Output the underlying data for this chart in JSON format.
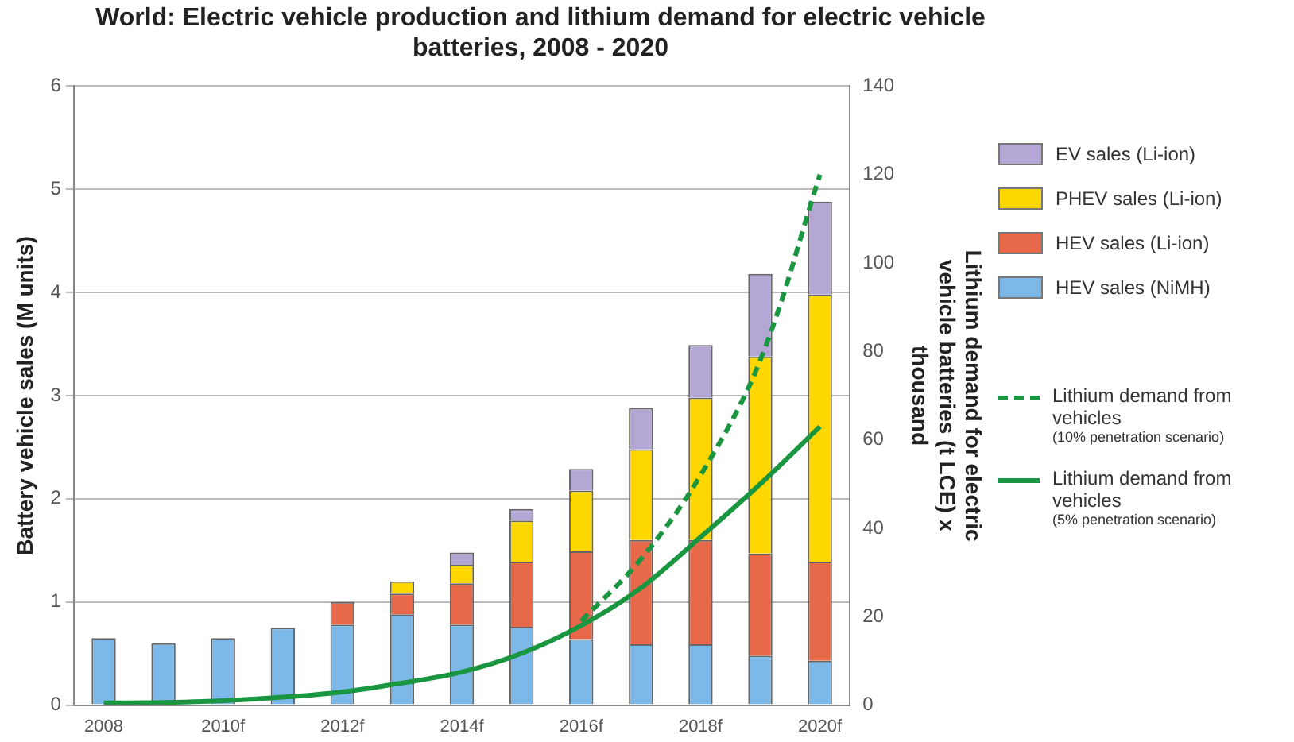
{
  "chart_data": {
    "type": "bar",
    "title": "World:  Electric vehicle production and lithium demand for electric vehicle batteries, 2008 - 2020",
    "ylabel": "Battery vehicle sales (M units)",
    "y2label": "Lithium demand for electric vehicle batteries (t LCE) x thousand",
    "categories": [
      "2008",
      null,
      "2010f",
      null,
      "2012f",
      null,
      "2014f",
      null,
      "2016f",
      null,
      "2018f",
      null,
      "2020f"
    ],
    "stacked": true,
    "legend": "right",
    "grid": "y",
    "marker": "none",
    "ylim": [
      0,
      6
    ],
    "yticks": [
      0,
      1,
      2,
      3,
      4,
      5,
      6
    ],
    "y2lim": [
      0,
      140
    ],
    "y2ticks": [
      0,
      20,
      40,
      60,
      80,
      100,
      120,
      140
    ],
    "series": [
      {
        "name": "HEV sales (NiMH)",
        "color": "#7cb9e8",
        "values": [
          0.65,
          0.6,
          0.65,
          0.75,
          0.78,
          0.88,
          0.78,
          0.76,
          0.64,
          0.59,
          0.59,
          0.48,
          0.43
        ]
      },
      {
        "name": "HEV sales (Li-ion)",
        "color": "#e8684a",
        "values": [
          0,
          0,
          0,
          0,
          0.22,
          0.2,
          0.4,
          0.63,
          0.85,
          1.01,
          1.01,
          0.99,
          0.96
        ]
      },
      {
        "name": "PHEV sales (Li-ion)",
        "color": "#ffd700",
        "values": [
          0,
          0,
          0,
          0,
          0,
          0.12,
          0.18,
          0.4,
          0.59,
          0.88,
          1.38,
          1.91,
          2.59
        ]
      },
      {
        "name": "EV sales (Li-ion)",
        "color": "#b4a7d6",
        "values": [
          0,
          0,
          0,
          0,
          0,
          0,
          0.12,
          0.11,
          0.21,
          0.4,
          0.51,
          0.8,
          0.9
        ]
      },
      {
        "name": "Lithium demand from vehicles (10% penetration scenario)",
        "type": "line",
        "axis": "y2",
        "line_style": "dashed",
        "color": "#1a9641",
        "values": [
          null,
          null,
          null,
          null,
          null,
          null,
          null,
          null,
          19,
          33,
          52,
          78,
          120
        ]
      },
      {
        "name": "Lithium demand from vehicles (5% penetration scenario)",
        "type": "line",
        "axis": "y2",
        "line_style": "solid",
        "color": "#1a9641",
        "values": [
          0.5,
          0.6,
          1,
          1.8,
          3,
          5,
          7.5,
          11.7,
          18,
          26.5,
          38,
          50,
          63
        ]
      }
    ]
  }
}
